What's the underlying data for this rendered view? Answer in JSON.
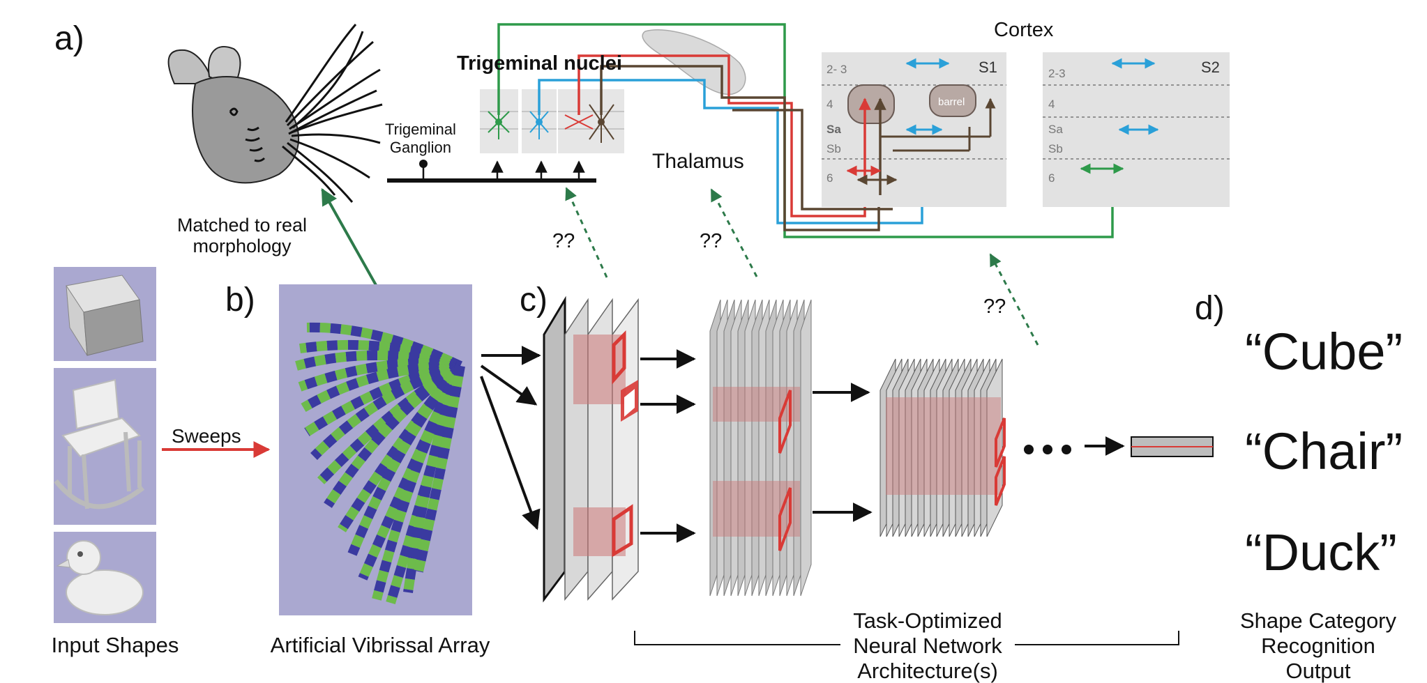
{
  "panels": {
    "a": "a)",
    "b": "b)",
    "c": "c)",
    "d": "d)"
  },
  "labels": {
    "cortex": "Cortex",
    "trigeminal_nuclei": "Trigeminal nuclei",
    "trigeminal_ganglion": "Trigeminal\nGanglion",
    "thalamus": "Thalamus",
    "matched": "Matched to real\nmorphology",
    "sweeps": "Sweeps",
    "input_shapes": "Input Shapes",
    "vibrissal_array": "Artificial Vibrissal Array",
    "task_optimized": "Task-Optimized\nNeural Network\nArchitecture(s)",
    "shape_output": "Shape Category\nRecognition\nOutput",
    "q1": "??",
    "q2": "??",
    "q3": "??"
  },
  "outputs": [
    "“Cube”",
    "“Chair”",
    "“Duck”"
  ],
  "cortex": {
    "s1": {
      "name": "S1",
      "layers": [
        "2- 3",
        "4",
        "Sa",
        "Sb",
        "6"
      ],
      "barrel": "barrel"
    },
    "s2": {
      "name": "S2",
      "layers": [
        "2-3",
        "4",
        "Sa",
        "Sb",
        "6"
      ]
    }
  },
  "colors": {
    "green": "#2e9a4a",
    "blue": "#2aa0d8",
    "red": "#d93a36",
    "brown": "#5a4632",
    "dark_green": "#2d7a4a",
    "lavender": "#aaa8d0",
    "whisker_green": "#6dbb4b",
    "whisker_blue": "#3a3aa0"
  }
}
